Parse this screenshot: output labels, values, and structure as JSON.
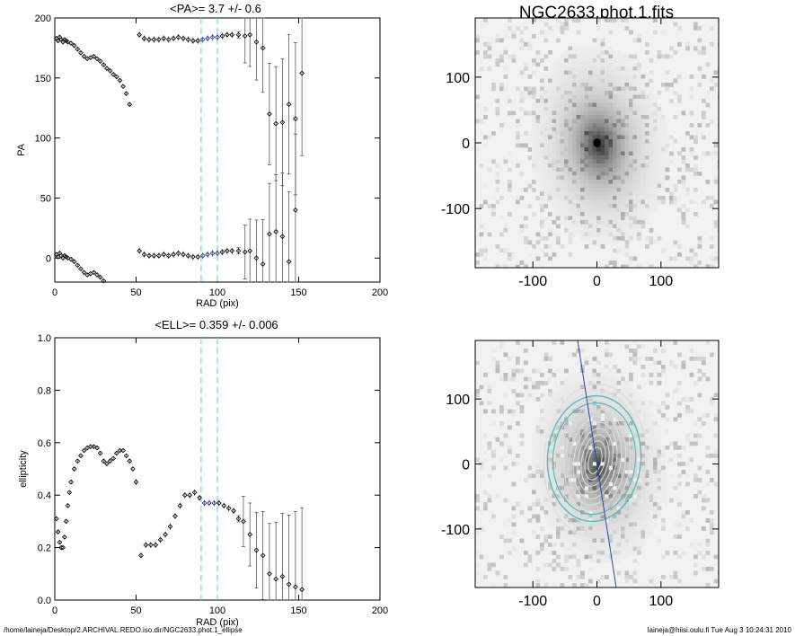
{
  "footer": {
    "left": "/home/laineja/Desktop/2.ARCHIVAL.REDO.iso.dir/NGC2633.phot.1_ellipse",
    "right": "laineja@hiisi.oulu.fi  Tue Aug  3 10:24:31 2010"
  },
  "image_title": "NGC2633.phot.1.fits",
  "colors": {
    "blue_points": "#2233aa",
    "dashed": "#66dddd",
    "contour": "#dddddd",
    "ellipse_outer": "#55bbbb",
    "major_axis": "#3344aa"
  },
  "chart_data": [
    {
      "id": "pa",
      "type": "scatter",
      "title": "<PA>=   3.7 +/-   0.6",
      "xlabel": "RAD (pix)",
      "ylabel": "PA",
      "xlim": [
        0,
        200
      ],
      "ylim": [
        -20,
        200
      ],
      "xticks": [
        "0",
        "50",
        "100",
        "150",
        "200"
      ],
      "yticks": [
        "0",
        "50",
        "100",
        "150",
        "200"
      ],
      "vlines": [
        90,
        100
      ],
      "series": [
        {
          "name": "inner",
          "points": [
            [
              1,
              183
            ],
            [
              2,
              181
            ],
            [
              3,
              184
            ],
            [
              4,
              182
            ],
            [
              5,
              180
            ],
            [
              6,
              182
            ],
            [
              7,
              181
            ],
            [
              8,
              180
            ],
            [
              10,
              179
            ],
            [
              12,
              177
            ],
            [
              14,
              174
            ],
            [
              16,
              171
            ],
            [
              18,
              168
            ],
            [
              20,
              166
            ],
            [
              22,
              167
            ],
            [
              24,
              168
            ],
            [
              26,
              166
            ],
            [
              28,
              164
            ],
            [
              30,
              161
            ],
            [
              32,
              158
            ],
            [
              34,
              156
            ],
            [
              36,
              153
            ],
            [
              38,
              151
            ],
            [
              40,
              148
            ],
            [
              42,
              143
            ],
            [
              44,
              137
            ],
            [
              46,
              128
            ]
          ]
        },
        {
          "name": "inner_wrap",
          "points": [
            [
              1,
              3
            ],
            [
              2,
              1
            ],
            [
              3,
              4
            ],
            [
              4,
              2
            ],
            [
              5,
              0
            ],
            [
              6,
              2
            ],
            [
              7,
              1
            ],
            [
              8,
              0
            ],
            [
              10,
              -1
            ],
            [
              12,
              -3
            ],
            [
              14,
              -6
            ],
            [
              16,
              -9
            ],
            [
              18,
              -12
            ],
            [
              20,
              -14
            ],
            [
              22,
              -13
            ],
            [
              24,
              -12
            ],
            [
              26,
              -14
            ],
            [
              28,
              -16
            ],
            [
              30,
              -19
            ]
          ]
        },
        {
          "name": "outer",
          "points": [
            [
              52,
              186
            ],
            [
              55,
              183
            ],
            [
              58,
              182
            ],
            [
              61,
              182
            ],
            [
              64,
              182
            ],
            [
              67,
              183
            ],
            [
              70,
              182
            ],
            [
              73,
              183
            ],
            [
              76,
              184
            ],
            [
              79,
              183
            ],
            [
              82,
              182
            ],
            [
              85,
              181
            ],
            [
              88,
              181
            ],
            [
              91,
              182
            ],
            [
              94,
              183
            ],
            [
              97,
              184
            ],
            [
              100,
              184
            ],
            [
              103,
              185
            ],
            [
              106,
              186
            ],
            [
              109,
              186
            ],
            [
              113,
              186
            ],
            [
              117,
              185
            ],
            [
              120,
              186
            ],
            [
              124,
              180
            ],
            [
              128,
              175
            ],
            [
              132,
              120
            ],
            [
              136,
              112
            ],
            [
              140,
              113
            ],
            [
              144,
              128
            ],
            [
              148,
              116
            ],
            [
              152,
              154
            ]
          ]
        },
        {
          "name": "outer_wrap",
          "points": [
            [
              52,
              6
            ],
            [
              55,
              3
            ],
            [
              58,
              2
            ],
            [
              61,
              2
            ],
            [
              64,
              2
            ],
            [
              67,
              3
            ],
            [
              70,
              2
            ],
            [
              73,
              3
            ],
            [
              76,
              4
            ],
            [
              79,
              3
            ],
            [
              82,
              2
            ],
            [
              85,
              1
            ],
            [
              88,
              1
            ],
            [
              91,
              2
            ],
            [
              94,
              3
            ],
            [
              97,
              4
            ],
            [
              100,
              4
            ],
            [
              103,
              5
            ],
            [
              106,
              6
            ],
            [
              109,
              6
            ],
            [
              113,
              6
            ],
            [
              117,
              5
            ],
            [
              120,
              6
            ],
            [
              124,
              0
            ],
            [
              128,
              -5
            ],
            [
              132,
              20
            ],
            [
              136,
              22
            ],
            [
              140,
              18
            ],
            [
              144,
              -3
            ],
            [
              148,
              40
            ]
          ]
        }
      ]
    },
    {
      "id": "ell",
      "type": "scatter",
      "title": "<ELL>= 0.359 +/-  0.006",
      "xlabel": "RAD (pix)",
      "ylabel": "ellipticity",
      "xlim": [
        0,
        200
      ],
      "ylim": [
        0.0,
        1.0
      ],
      "xticks": [
        "0",
        "50",
        "100",
        "150",
        "200"
      ],
      "yticks": [
        "0.0",
        "0.2",
        "0.4",
        "0.6",
        "0.8",
        "1.0"
      ],
      "vlines": [
        90,
        100
      ],
      "series": [
        {
          "name": "ellipticity",
          "points": [
            [
              1,
              0.31
            ],
            [
              2,
              0.26
            ],
            [
              3,
              0.22
            ],
            [
              4,
              0.2
            ],
            [
              5,
              0.2
            ],
            [
              6,
              0.24
            ],
            [
              7,
              0.3
            ],
            [
              8,
              0.36
            ],
            [
              9,
              0.41
            ],
            [
              10,
              0.45
            ],
            [
              12,
              0.5
            ],
            [
              14,
              0.53
            ],
            [
              16,
              0.55
            ],
            [
              18,
              0.57
            ],
            [
              20,
              0.58
            ],
            [
              22,
              0.585
            ],
            [
              24,
              0.585
            ],
            [
              26,
              0.58
            ],
            [
              28,
              0.56
            ],
            [
              30,
              0.53
            ],
            [
              32,
              0.52
            ],
            [
              34,
              0.53
            ],
            [
              36,
              0.54
            ],
            [
              38,
              0.56
            ],
            [
              40,
              0.57
            ],
            [
              42,
              0.57
            ],
            [
              44,
              0.55
            ],
            [
              46,
              0.53
            ],
            [
              48,
              0.5
            ],
            [
              50,
              0.45
            ],
            [
              53,
              0.17
            ],
            [
              56,
              0.21
            ],
            [
              59,
              0.21
            ],
            [
              62,
              0.21
            ],
            [
              65,
              0.23
            ],
            [
              68,
              0.25
            ],
            [
              71,
              0.28
            ],
            [
              74,
              0.32
            ],
            [
              77,
              0.36
            ],
            [
              80,
              0.4
            ],
            [
              83,
              0.4
            ],
            [
              86,
              0.41
            ],
            [
              89,
              0.39
            ],
            [
              92,
              0.37
            ],
            [
              95,
              0.37
            ],
            [
              98,
              0.37
            ],
            [
              101,
              0.37
            ],
            [
              104,
              0.36
            ],
            [
              107,
              0.35
            ],
            [
              110,
              0.34
            ],
            [
              113,
              0.31
            ],
            [
              116,
              0.3
            ],
            [
              120,
              0.25
            ],
            [
              124,
              0.19
            ],
            [
              128,
              0.17
            ],
            [
              132,
              0.1
            ],
            [
              136,
              0.08
            ],
            [
              140,
              0.09
            ],
            [
              144,
              0.06
            ],
            [
              148,
              0.05
            ],
            [
              152,
              0.04
            ]
          ]
        }
      ]
    },
    {
      "id": "image_top",
      "type": "heatmap",
      "title": "NGC2633.phot.1.fits",
      "xlim": [
        -190,
        190
      ],
      "ylim": [
        -190,
        190
      ],
      "xticks": [
        "-100",
        "0",
        "100"
      ],
      "yticks": [
        "100",
        "0",
        "-100"
      ]
    },
    {
      "id": "image_bottom",
      "type": "heatmap",
      "title": "",
      "xlim": [
        -190,
        190
      ],
      "ylim": [
        -190,
        190
      ],
      "xticks": [
        "-100",
        "0",
        "100"
      ],
      "yticks": [
        "100",
        "0",
        "-100"
      ],
      "contour_axis_ratio": 0.641,
      "major_axis_pa": 3.7
    }
  ]
}
